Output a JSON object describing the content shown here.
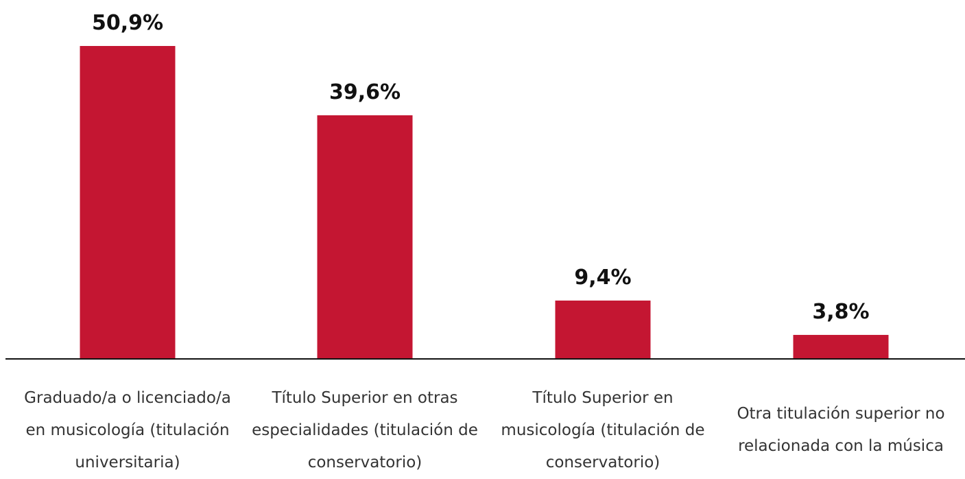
{
  "chart_data": {
    "type": "bar",
    "categories": [
      "Graduado/a o licenciado/a en musicología (titulación universitaria)",
      "Título Superior en otras especialidades (titulación de conservatorio)",
      "Título Superior en musicología (titulación de conservatorio)",
      "Otra titulación superior no relacionada con la música"
    ],
    "values": [
      50.9,
      39.6,
      9.4,
      3.8
    ],
    "value_labels": [
      "50,9%",
      "39,6%",
      "9,4%",
      "3,8%"
    ],
    "color": "#c41632"
  }
}
